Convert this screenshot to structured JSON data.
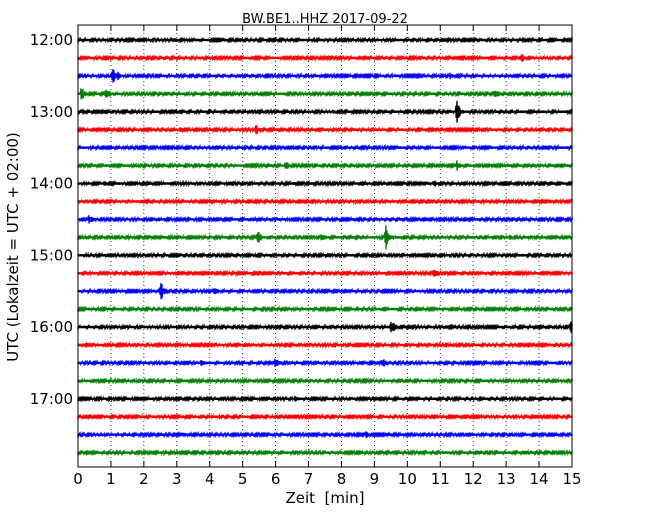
{
  "chart_data": {
    "type": "line",
    "title": "BW.BE1..HHZ 2017-09-22",
    "xlabel": "Zeit  [min]",
    "ylabel": "UTC (Lokalzeit = UTC + 02:00)",
    "xlim": [
      0,
      15
    ],
    "x_ticks": [
      0,
      1,
      2,
      3,
      4,
      5,
      6,
      7,
      8,
      9,
      10,
      11,
      12,
      13,
      14,
      15
    ],
    "x_tick_labels": [
      "0",
      "1",
      "2",
      "3",
      "4",
      "5",
      "6",
      "7",
      "8",
      "9",
      "10",
      "11",
      "12",
      "13",
      "14",
      "15"
    ],
    "y_tick_labels": [
      "12:00",
      "13:00",
      "14:00",
      "15:00",
      "16:00",
      "17:00"
    ],
    "y_tick_rows": [
      0,
      4,
      8,
      12,
      16,
      20
    ],
    "grid": "x-dotted",
    "trace_colors": [
      "#000000",
      "#ff0000",
      "#0000ff",
      "#008000"
    ],
    "rows": [
      {
        "label": "12:00",
        "events": [
          {
            "t": 2.9,
            "a": 0.25
          },
          {
            "t": 4.45,
            "a": 0.15
          },
          {
            "t": 13.5,
            "a": 0.3
          }
        ]
      },
      {
        "label": "12:15",
        "events": [
          {
            "t": 13.45,
            "a": 0.4
          }
        ]
      },
      {
        "label": "12:30",
        "events": [
          {
            "t": 1.05,
            "a": 0.6
          },
          {
            "t": 1.2,
            "a": 0.35
          },
          {
            "t": 11.3,
            "a": 0.25
          }
        ]
      },
      {
        "label": "12:45",
        "events": [
          {
            "t": 0.1,
            "a": 0.55
          },
          {
            "t": 0.85,
            "a": 0.6
          },
          {
            "t": 12.65,
            "a": 0.5
          }
        ]
      },
      {
        "label": "13:00",
        "events": [
          {
            "t": 0.15,
            "a": 0.25
          },
          {
            "t": 7.75,
            "a": 0.2
          },
          {
            "t": 11.5,
            "a": 0.85
          },
          {
            "t": 14.8,
            "a": 0.2
          }
        ]
      },
      {
        "label": "13:15",
        "events": [
          {
            "t": 3.1,
            "a": 0.2
          },
          {
            "t": 5.4,
            "a": 0.4
          },
          {
            "t": 6.0,
            "a": 0.2
          }
        ]
      },
      {
        "label": "13:30",
        "events": []
      },
      {
        "label": "13:45",
        "events": [
          {
            "t": 6.3,
            "a": 0.4
          },
          {
            "t": 11.5,
            "a": 0.4
          }
        ]
      },
      {
        "label": "14:00",
        "events": [
          {
            "t": 0.8,
            "a": 0.2
          },
          {
            "t": 10.8,
            "a": 0.35
          }
        ]
      },
      {
        "label": "14:15",
        "events": [
          {
            "t": 4.0,
            "a": 0.2
          },
          {
            "t": 14.3,
            "a": 0.2
          }
        ]
      },
      {
        "label": "14:30",
        "events": [
          {
            "t": 0.35,
            "a": 0.45
          }
        ]
      },
      {
        "label": "14:45",
        "events": [
          {
            "t": 5.45,
            "a": 0.55
          },
          {
            "t": 7.4,
            "a": 0.4
          },
          {
            "t": 9.35,
            "a": 0.9
          },
          {
            "t": 13.1,
            "a": 0.25
          }
        ]
      },
      {
        "label": "15:00",
        "events": [
          {
            "t": 4.7,
            "a": 0.15
          }
        ]
      },
      {
        "label": "15:15",
        "events": [
          {
            "t": 10.8,
            "a": 0.55
          }
        ]
      },
      {
        "label": "15:30",
        "events": [
          {
            "t": 2.5,
            "a": 0.8
          },
          {
            "t": 4.15,
            "a": 0.35
          },
          {
            "t": 14.3,
            "a": 0.2
          }
        ]
      },
      {
        "label": "15:45",
        "events": [
          {
            "t": 8.5,
            "a": 0.15
          }
        ]
      },
      {
        "label": "16:00",
        "events": [
          {
            "t": 9.5,
            "a": 0.6
          },
          {
            "t": 14.95,
            "a": 0.5
          }
        ]
      },
      {
        "label": "16:15",
        "events": []
      },
      {
        "label": "16:30",
        "events": [
          {
            "t": 3.75,
            "a": 0.35
          },
          {
            "t": 6.0,
            "a": 0.5
          },
          {
            "t": 9.25,
            "a": 0.5
          }
        ]
      },
      {
        "label": "16:45",
        "events": []
      },
      {
        "label": "17:00",
        "events": [
          {
            "t": 6.6,
            "a": 0.25
          }
        ]
      },
      {
        "label": "17:15",
        "events": [
          {
            "t": 2.45,
            "a": 0.15
          }
        ]
      },
      {
        "label": "17:30",
        "events": [
          {
            "t": 3.2,
            "a": 0.2
          },
          {
            "t": 8.75,
            "a": 0.3
          }
        ]
      },
      {
        "label": "17:45",
        "events": []
      }
    ]
  }
}
